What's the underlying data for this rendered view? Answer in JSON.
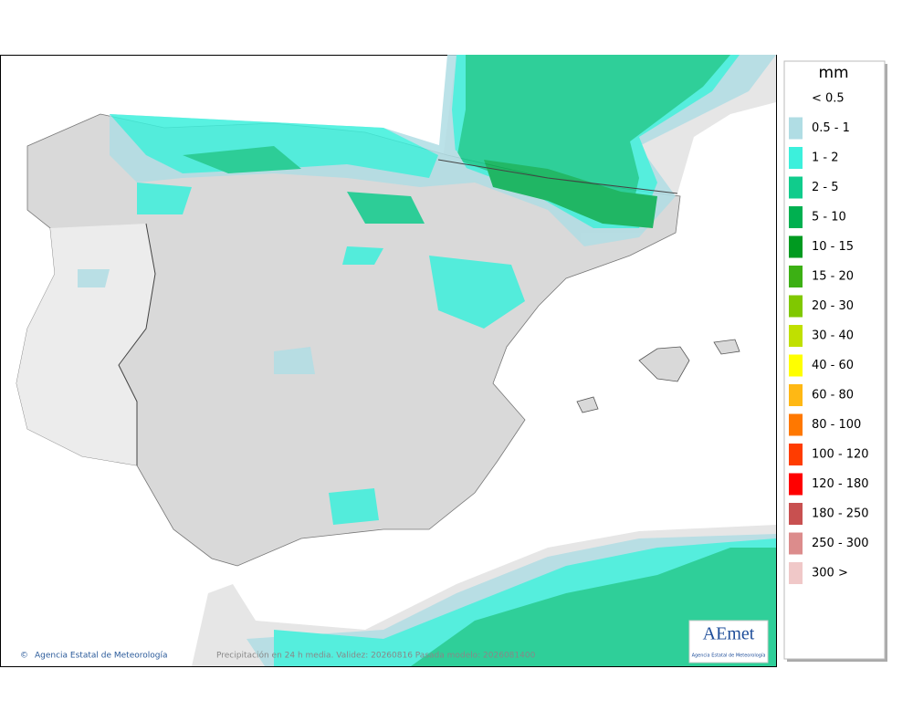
{
  "map": {
    "footer_left": "Agencia Estatal de Meteorología",
    "footer_center": "Precipitación en 24 h media. Validez: 20260816 Pasada modelo: 2026081400",
    "logo_text": "AEmet",
    "logo_subtitle": "Agencia Estatal de Meteorología"
  },
  "legend": {
    "title": "mm",
    "items": [
      {
        "label": "< 0.5",
        "color": "#ffffff"
      },
      {
        "label": "0.5 - 1",
        "color": "#b0dde4"
      },
      {
        "label": "1 - 2",
        "color": "#3cf0dc"
      },
      {
        "label": "2 - 5",
        "color": "#10cc8c"
      },
      {
        "label": "5 - 10",
        "color": "#00b050"
      },
      {
        "label": "10 - 15",
        "color": "#009a20"
      },
      {
        "label": "15 - 20",
        "color": "#3cb014"
      },
      {
        "label": "20 - 30",
        "color": "#80c800"
      },
      {
        "label": "30 - 40",
        "color": "#c0e000"
      },
      {
        "label": "40 - 60",
        "color": "#ffff00"
      },
      {
        "label": "60 - 80",
        "color": "#ffb814"
      },
      {
        "label": "80 - 100",
        "color": "#ff7800"
      },
      {
        "label": "100 - 120",
        "color": "#ff3c00"
      },
      {
        "label": "120 - 180",
        "color": "#ff0000"
      },
      {
        "label": "180 - 250",
        "color": "#c85050"
      },
      {
        "label": "250 - 300",
        "color": "#dc8c8c"
      },
      {
        "label": "300 >",
        "color": "#f0c8c8"
      }
    ]
  }
}
